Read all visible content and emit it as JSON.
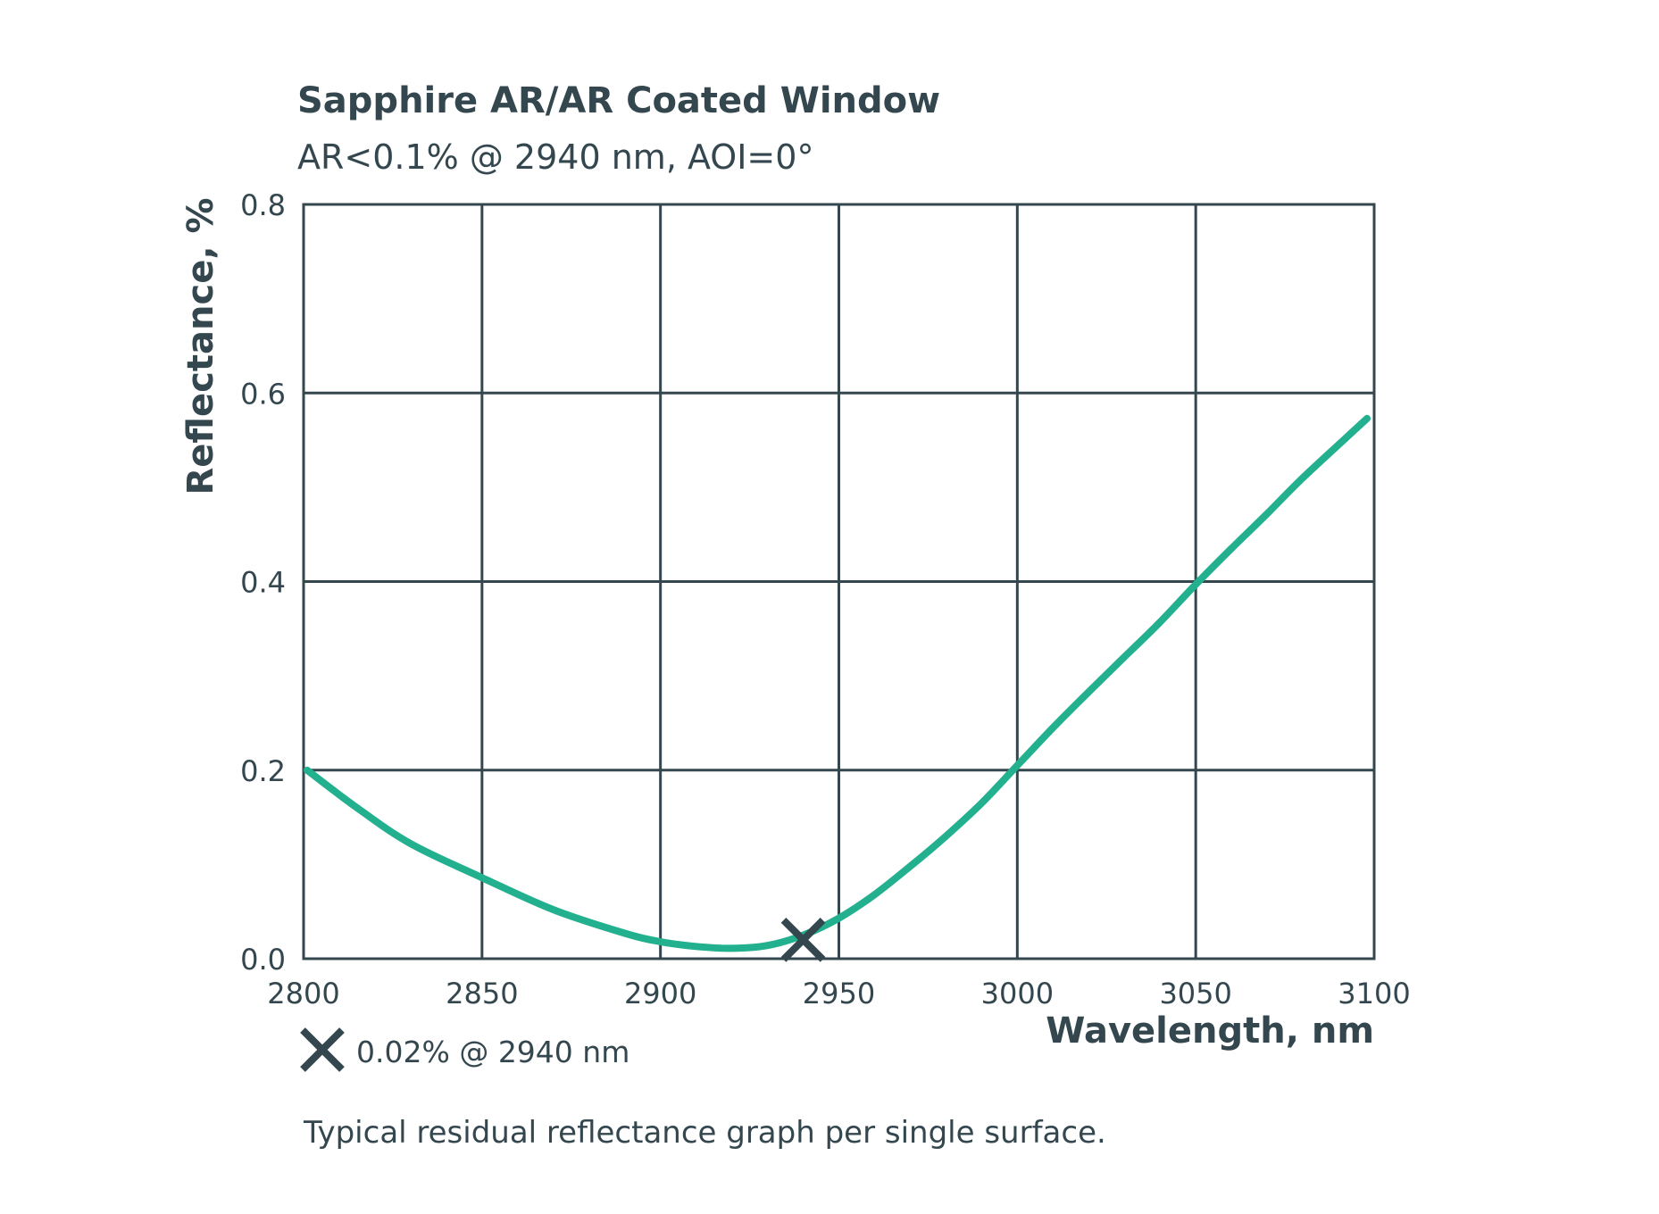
{
  "chart_data": {
    "type": "line",
    "title": "Sapphire AR/AR Coated Window",
    "subtitle": "AR<0.1% @ 2940 nm, AOI=0°",
    "xlabel": "Wavelength, nm",
    "ylabel": "Reflectance, %",
    "xlim": [
      2800,
      3100
    ],
    "ylim": [
      0.0,
      0.8
    ],
    "x_ticks": [
      2800,
      2850,
      2900,
      2950,
      3000,
      3050,
      3100
    ],
    "y_ticks": [
      0.0,
      0.2,
      0.4,
      0.6,
      0.8
    ],
    "x_tick_labels": [
      "2800",
      "2850",
      "2900",
      "2950",
      "3000",
      "3050",
      "3100"
    ],
    "y_tick_labels": [
      "0.0",
      "0.2",
      "0.4",
      "0.6",
      "0.8"
    ],
    "grid": true,
    "series": [
      {
        "name": "Reflectance",
        "color": "#22b08e",
        "x": [
          2801,
          2815,
          2830,
          2850,
          2870,
          2890,
          2900,
          2910,
          2920,
          2930,
          2940,
          2950,
          2960,
          2970,
          2980,
          2990,
          3000,
          3010,
          3020,
          3030,
          3040,
          3050,
          3060,
          3070,
          3080,
          3090,
          3098
        ],
        "y": [
          0.2,
          0.16,
          0.122,
          0.086,
          0.052,
          0.027,
          0.018,
          0.013,
          0.011,
          0.014,
          0.025,
          0.043,
          0.068,
          0.098,
          0.13,
          0.165,
          0.205,
          0.245,
          0.283,
          0.32,
          0.357,
          0.397,
          0.435,
          0.472,
          0.51,
          0.545,
          0.573
        ]
      }
    ],
    "marker": {
      "x": 2940,
      "y": 0.02,
      "symbol": "x",
      "color": "#34474f",
      "label": "0.02% @ 2940 nm"
    },
    "legend": "bottom-left",
    "caption": "Typical residual reflectance graph per single surface."
  }
}
